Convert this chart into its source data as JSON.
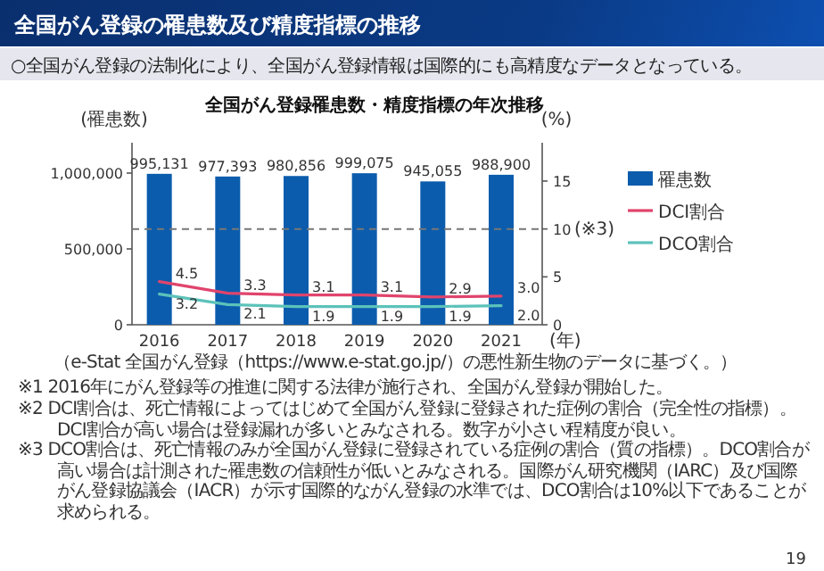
{
  "chart_data": {
    "type": "bar",
    "title": "全国がん登録の罹患数及び精度指標の推移",
    "subtitle": "○全国がん登録の法制化により、全国がん登録情報は国際的にも高精度なデータとなっている。",
    "xlabel": "(年)",
    "ylabel": "(罹患数)",
    "y2label": "(%)",
    "categories": [
      "2016",
      "2017",
      "2018",
      "2019",
      "2020",
      "2021"
    ],
    "series": [
      {
        "name": "罹患数",
        "color": "#0b5cad",
        "values": [
          995131,
          977393,
          980856,
          999075,
          945055,
          988900
        ],
        "value_labels": [
          "995,131",
          "977,393",
          "980,856",
          "999,075",
          "945,055",
          "988,900"
        ]
      },
      {
        "name": "DCI割合",
        "type": "line",
        "axis": "y2",
        "color": "#e0446c",
        "values": [
          4.5,
          3.3,
          3.1,
          3.1,
          2.9,
          3.0
        ],
        "value_labels": [
          "4.5",
          "3.3",
          "3.1",
          "3.1",
          "2.9",
          "3.0"
        ]
      },
      {
        "name": "DCO割合",
        "type": "line",
        "axis": "y2",
        "color": "#5cc2ba",
        "values": [
          3.2,
          2.1,
          1.9,
          1.9,
          1.9,
          2.0
        ],
        "value_labels": [
          "3.2",
          "2.1",
          "1.9",
          "1.9",
          "1.9",
          "2.0"
        ]
      }
    ],
    "ylim": [
      0,
      1200000
    ],
    "yticks": [
      0,
      {
        "value": 500000,
        "label": "500,000"
      },
      {
        "value": 1000000,
        "label": "1,000,000"
      }
    ],
    "y2lim": [
      0,
      19
    ],
    "y2ticks": [
      0,
      5,
      10,
      15
    ],
    "ref_lines": [
      {
        "axis": "y2",
        "value": 10,
        "label": "(※3)",
        "color": "#777777",
        "line_style": "dashed"
      }
    ],
    "legend": "right",
    "annotations": [
      "全国がん登録罹患数・精度指標の年次推移",
      "（e-Stat 全国がん登録（https://www.e-stat.go.jp/）の悪性新生物のデータに基づく。）",
      "※1 2016年にがん登録等の推進に関する法律が施行され、全国がん登録が開始した。",
      "※2 DCI割合は、死亡情報によってはじめて全国がん登録に登録された症例の割合（完全性の指標）。DCI割合が高い場合は登録漏れが多いとみなされる。数字が小さい程精度が良い。",
      "※3 DCO割合は、死亡情報のみが全国がん登録に登録されている症例の割合（質の指標）。DCO割合が高い場合は計測された罹患数の信頼性が低いとみなされる。国際がん研究機関（IARC）及び国際がん登録協議会（IACR）が示す国際的ながん登録の水準では、DCO割合は10%以下であることが求められる。",
      "19"
    ]
  }
}
